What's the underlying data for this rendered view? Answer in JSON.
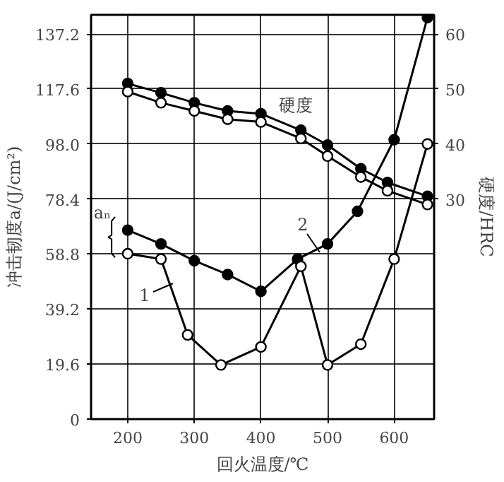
{
  "chart_data": {
    "type": "line",
    "xlabel": "回火温度/℃",
    "ylabel": "冲击韧度a/(J/cm²)",
    "y2label": "硬度/HRC",
    "xlim": [
      145,
      660
    ],
    "xticks": [
      200,
      300,
      400,
      500,
      600
    ],
    "ylim": [
      0,
      144
    ],
    "yticks": [
      0,
      19.6,
      39.2,
      58.8,
      78.4,
      {
        "value": 98.0,
        "label": "98.0"
      },
      117.6,
      137.2
    ],
    "y2lim": [
      -10,
      63.47
    ],
    "y2ticks": [
      30,
      40,
      50,
      60
    ],
    "grid": true,
    "marker": "circle",
    "line_style": "solid",
    "series": [
      {
        "color": "#000000",
        "axis": "y2",
        "x": [
          200,
          250,
          300,
          350,
          400,
          460,
          500,
          550,
          590,
          650
        ],
        "values": [
          51,
          49.3,
          47.5,
          46,
          45.5,
          42.5,
          39.8,
          35.5,
          33,
          30.5
        ]
      },
      {
        "color": "#ffffff",
        "axis": "y2",
        "x": [
          200,
          250,
          300,
          350,
          400,
          460,
          500,
          550,
          590,
          650
        ],
        "values": [
          49.5,
          47.5,
          46,
          44.5,
          44,
          41,
          37.8,
          34,
          31.5,
          29
        ]
      },
      {
        "color": "#000000",
        "x": [
          200,
          250,
          300,
          350,
          400,
          455,
          500,
          545,
          600,
          650
        ],
        "values": [
          67.3,
          62.4,
          56.4,
          51.5,
          45.5,
          57,
          62.4,
          74,
          99.5,
          143
        ]
      },
      {
        "color": "#ffffff",
        "x": [
          200,
          250,
          290,
          340,
          400,
          460,
          500,
          550,
          600,
          650
        ],
        "values": [
          58.9,
          57,
          30,
          19.3,
          25.7,
          54.4,
          19.3,
          26.7,
          57,
          98
        ]
      }
    ],
    "annotations": [
      "1",
      "2",
      "硬度",
      "aₙ"
    ]
  }
}
